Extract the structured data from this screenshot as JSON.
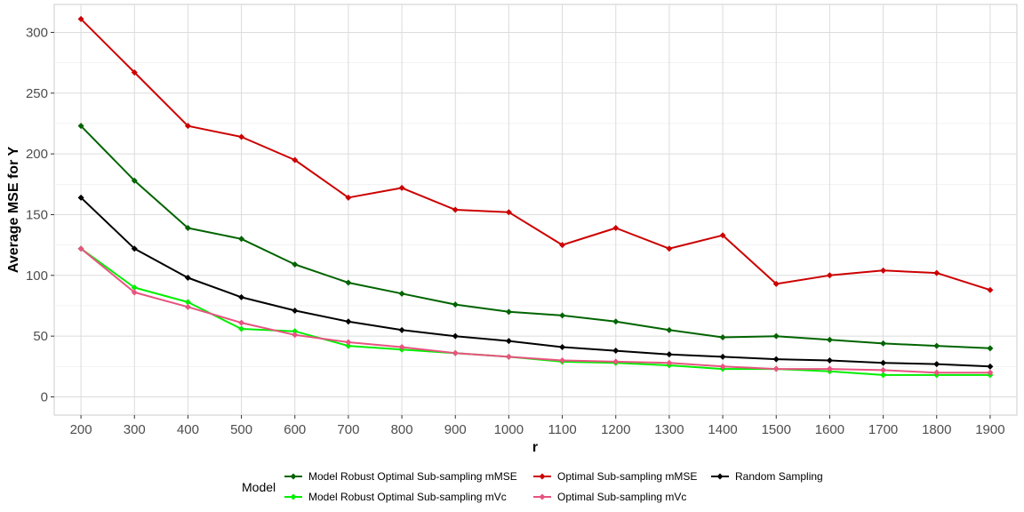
{
  "chart_data": {
    "type": "line",
    "xlabel": "r",
    "ylabel": "Average MSE for Y",
    "x": [
      200,
      300,
      400,
      500,
      600,
      700,
      800,
      900,
      1000,
      1100,
      1200,
      1300,
      1400,
      1500,
      1600,
      1700,
      1800,
      1900
    ],
    "x_ticks": [
      "200",
      "300",
      "400",
      "500",
      "600",
      "700",
      "800",
      "900",
      "1000",
      "1100",
      "1200",
      "1300",
      "1400",
      "1500",
      "1600",
      "1700",
      "1800",
      "1900"
    ],
    "y_ticks": [
      "0",
      "50",
      "100",
      "150",
      "200",
      "250",
      "300"
    ],
    "xlim": [
      150,
      1950
    ],
    "ylim": [
      -15,
      323
    ],
    "grid": true,
    "legend": {
      "title": "Model",
      "position": "bottom"
    },
    "series": [
      {
        "name": "Model Robust Optimal Sub-sampling mMSE",
        "color": "#006400",
        "values": [
          223,
          178,
          139,
          130,
          109,
          94,
          85,
          76,
          70,
          67,
          62,
          55,
          49,
          50,
          47,
          44,
          42,
          40
        ]
      },
      {
        "name": "Model Robust Optimal Sub-sampling mVc",
        "color": "#00ee00",
        "values": [
          122,
          90,
          78,
          56,
          54,
          42,
          39,
          36,
          33,
          29,
          28,
          26,
          23,
          23,
          21,
          18,
          18,
          18
        ]
      },
      {
        "name": "Optimal Sub-sampling mMSE",
        "color": "#cc0000",
        "values": [
          311,
          267,
          223,
          214,
          195,
          164,
          172,
          154,
          152,
          125,
          139,
          122,
          133,
          93,
          100,
          104,
          102,
          88
        ]
      },
      {
        "name": "Optimal Sub-sampling mVc",
        "color": "#e75480",
        "values": [
          122,
          86,
          74,
          61,
          51,
          45,
          41,
          36,
          33,
          30,
          29,
          28,
          25,
          23,
          23,
          22,
          20,
          20
        ]
      },
      {
        "name": "Random Sampling",
        "color": "#000000",
        "values": [
          164,
          122,
          98,
          82,
          71,
          62,
          55,
          50,
          46,
          41,
          38,
          35,
          33,
          31,
          30,
          28,
          27,
          25
        ]
      }
    ]
  }
}
